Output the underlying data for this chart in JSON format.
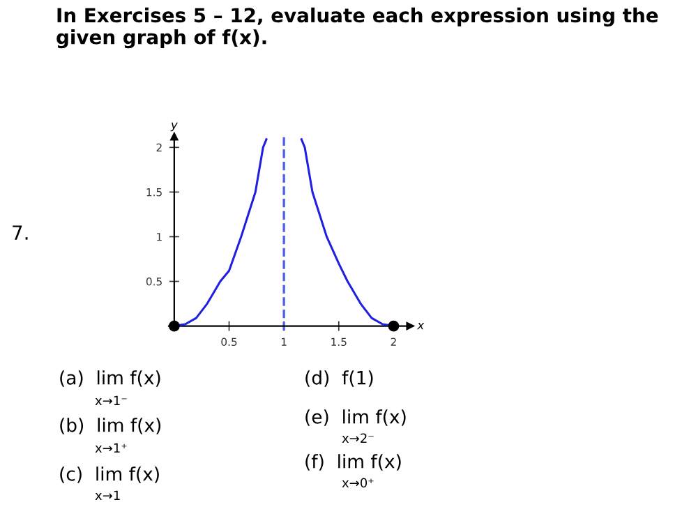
{
  "chart_data": {
    "type": "line",
    "xlabel": "x",
    "ylabel": "y",
    "xlim": [
      -0.05,
      2.15
    ],
    "ylim": [
      -0.05,
      2.12
    ],
    "xticks": [
      0.5,
      1,
      1.5,
      2
    ],
    "yticks": [
      0.5,
      1,
      1.5,
      2
    ],
    "grid": false,
    "legend": false,
    "series": [
      {
        "color": "#2020e0",
        "marker": "none",
        "x": [
          0,
          0.1,
          0.2,
          0.3,
          0.42,
          0.5,
          0.61,
          0.74,
          0.81,
          0.84,
          1,
          1.16,
          1.19,
          1.26,
          1.39,
          1.5,
          1.58,
          1.7,
          1.8,
          1.9,
          2
        ],
        "values": [
          0,
          0.02,
          0.09,
          0.25,
          0.5,
          0.62,
          1,
          1.5,
          2,
          2.09,
          null,
          2.09,
          2,
          1.5,
          1,
          0.7,
          0.5,
          0.25,
          0.09,
          0.02,
          0
        ]
      },
      {
        "type": "scatter",
        "color": "#000000",
        "marker": "circle",
        "x": [
          0,
          2
        ],
        "values": [
          0,
          0
        ]
      }
    ],
    "ref_lines": [
      {
        "axis": "x",
        "value": 1,
        "color": "#5060f0",
        "line_style": "dashed"
      }
    ],
    "annotations": [
      "In Exercises 5 – 12, evaluate each expression using the given graph of f(x).",
      "7.",
      "(a)  lim f(x)",
      "x→1⁻",
      "(b)  lim f(x)",
      "x→1⁺",
      "(c)  lim f(x)",
      "x→1",
      "(d)  f(1)",
      "(e)  lim f(x)",
      "x→2⁻",
      "(f)  lim f(x)",
      "x→0⁺"
    ]
  }
}
